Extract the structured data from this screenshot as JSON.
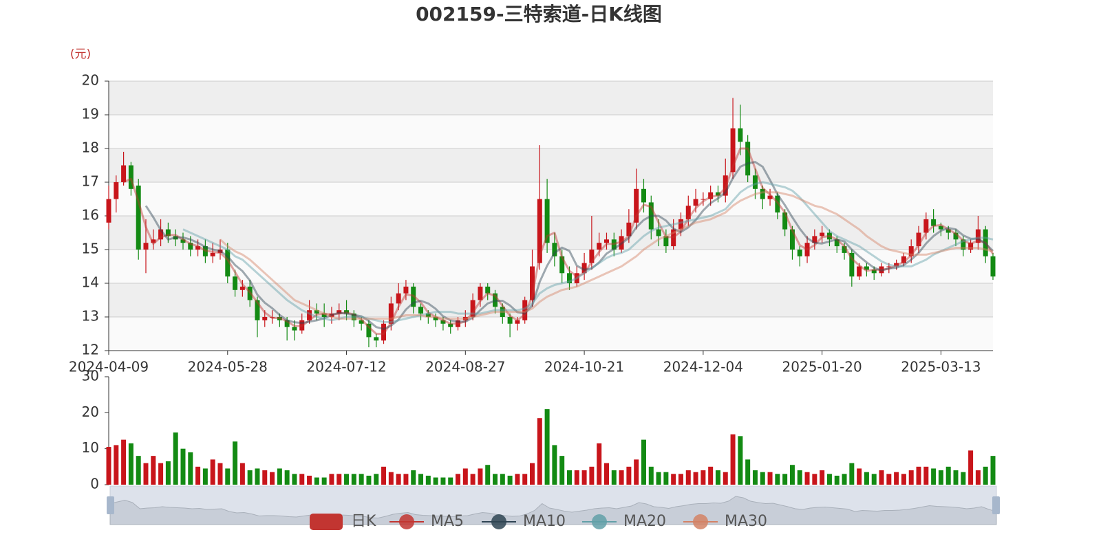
{
  "chart_data": {
    "type": "candlestick",
    "title": "002159-三特索道-日K线图",
    "y_unit": "(元)",
    "categories": [
      "2024-04-09",
      null,
      null,
      null,
      null,
      null,
      null,
      null,
      null,
      null,
      null,
      null,
      null,
      null,
      null,
      null,
      "2024-05-28",
      null,
      null,
      null,
      null,
      null,
      null,
      null,
      null,
      null,
      null,
      null,
      null,
      null,
      null,
      null,
      "2024-07-12",
      null,
      null,
      null,
      null,
      null,
      null,
      null,
      null,
      null,
      null,
      null,
      null,
      null,
      null,
      null,
      "2024-08-27",
      null,
      null,
      null,
      null,
      null,
      null,
      null,
      null,
      null,
      null,
      null,
      null,
      null,
      null,
      null,
      "2024-10-21",
      null,
      null,
      null,
      null,
      null,
      null,
      null,
      null,
      null,
      null,
      null,
      null,
      null,
      null,
      null,
      "2024-12-04",
      null,
      null,
      null,
      null,
      null,
      null,
      null,
      null,
      null,
      null,
      null,
      null,
      null,
      null,
      null,
      "2025-01-20",
      null,
      null,
      null,
      null,
      null,
      null,
      null,
      null,
      null,
      null,
      null,
      null,
      null,
      null,
      null,
      "2025-03-13",
      null,
      null,
      null,
      null,
      null,
      null,
      null
    ],
    "ylim": [
      12,
      20
    ],
    "yticks": [
      12,
      13,
      14,
      15,
      16,
      17,
      18,
      19,
      20
    ],
    "grid": true,
    "split_area_colors": [
      "#fafafa",
      "#eeeeee"
    ],
    "series": [
      {
        "name": "日K",
        "color": "#c23531",
        "up_color": "#c8151b",
        "down_color": "#138a13",
        "open": [
          15.8,
          16.5,
          17.0,
          17.5,
          16.9,
          15.0,
          15.2,
          15.3,
          15.6,
          15.4,
          15.3,
          15.2,
          15.0,
          15.1,
          14.8,
          14.9,
          15.0,
          14.2,
          13.8,
          13.9,
          13.5,
          12.9,
          13.0,
          13.0,
          12.9,
          12.7,
          12.6,
          12.9,
          13.2,
          13.1,
          13.0,
          13.1,
          13.2,
          13.1,
          12.9,
          12.8,
          12.4,
          12.3,
          12.8,
          13.4,
          13.7,
          13.9,
          13.3,
          13.1,
          13.0,
          12.9,
          12.8,
          12.7,
          12.9,
          13.0,
          13.5,
          13.9,
          13.7,
          13.3,
          13.0,
          12.8,
          12.9,
          13.5,
          14.6,
          16.5,
          15.2,
          14.8,
          14.3,
          14.0,
          14.3,
          14.6,
          15.0,
          15.2,
          15.3,
          15.0,
          15.4,
          15.8,
          16.8,
          16.4,
          15.6,
          15.4,
          15.1,
          15.6,
          15.9,
          16.3,
          16.5,
          16.5,
          16.7,
          16.6,
          17.3,
          18.6,
          18.2,
          17.2,
          16.8,
          16.5,
          16.6,
          16.1,
          15.6,
          15.0,
          14.8,
          15.2,
          15.4,
          15.5,
          15.3,
          15.1,
          14.9,
          14.2,
          14.5,
          14.4,
          14.3,
          14.5,
          14.5,
          14.6,
          14.8,
          15.1,
          15.5,
          15.9,
          15.7,
          15.6,
          15.5,
          15.3,
          15.0,
          15.2,
          15.6,
          14.8
        ],
        "close": [
          16.5,
          17.0,
          17.5,
          16.8,
          15.0,
          15.2,
          15.3,
          15.6,
          15.4,
          15.3,
          15.2,
          15.0,
          15.1,
          14.8,
          14.9,
          15.0,
          14.2,
          13.8,
          13.9,
          13.5,
          12.9,
          13.0,
          13.0,
          12.9,
          12.7,
          12.6,
          12.9,
          13.2,
          13.1,
          13.0,
          13.1,
          13.2,
          13.1,
          12.9,
          12.8,
          12.4,
          12.3,
          12.8,
          13.4,
          13.7,
          13.9,
          13.3,
          13.1,
          13.0,
          12.9,
          12.8,
          12.7,
          12.9,
          13.0,
          13.5,
          13.9,
          13.7,
          13.3,
          13.0,
          12.8,
          12.9,
          13.5,
          14.5,
          16.5,
          15.2,
          14.8,
          14.3,
          14.0,
          14.3,
          14.6,
          15.0,
          15.2,
          15.3,
          15.0,
          15.4,
          15.8,
          16.8,
          16.4,
          15.6,
          15.4,
          15.1,
          15.6,
          15.9,
          16.3,
          16.5,
          16.5,
          16.7,
          16.6,
          17.2,
          18.6,
          18.2,
          17.2,
          16.8,
          16.5,
          16.6,
          16.1,
          15.6,
          15.0,
          14.8,
          15.2,
          15.4,
          15.5,
          15.3,
          15.1,
          14.9,
          14.2,
          14.5,
          14.4,
          14.3,
          14.5,
          14.5,
          14.6,
          14.8,
          15.1,
          15.5,
          15.9,
          15.7,
          15.6,
          15.5,
          15.3,
          15.0,
          15.2,
          15.6,
          14.8,
          14.2
        ],
        "low": [
          15.6,
          16.1,
          16.9,
          16.6,
          14.7,
          14.3,
          15.0,
          15.1,
          15.2,
          15.1,
          15.0,
          14.8,
          14.8,
          14.6,
          14.6,
          14.7,
          14.0,
          13.6,
          13.6,
          13.3,
          12.4,
          12.7,
          12.8,
          12.7,
          12.3,
          12.3,
          12.5,
          12.8,
          12.9,
          12.7,
          12.8,
          12.9,
          12.9,
          12.7,
          12.6,
          12.1,
          12.1,
          12.2,
          12.6,
          13.2,
          13.5,
          13.1,
          12.9,
          12.8,
          12.7,
          12.6,
          12.5,
          12.6,
          12.7,
          12.9,
          13.3,
          13.5,
          13.1,
          12.8,
          12.4,
          12.6,
          12.8,
          13.3,
          14.4,
          14.9,
          14.5,
          14.0,
          13.8,
          13.9,
          14.1,
          14.4,
          14.8,
          15.0,
          14.8,
          14.9,
          15.2,
          15.6,
          16.1,
          15.3,
          15.1,
          14.9,
          15.0,
          15.4,
          15.7,
          16.1,
          16.3,
          16.3,
          16.4,
          16.4,
          17.1,
          17.8,
          17.0,
          16.5,
          16.2,
          16.3,
          15.9,
          15.4,
          14.7,
          14.5,
          14.6,
          15.0,
          15.2,
          15.1,
          14.9,
          14.7,
          13.9,
          14.1,
          14.2,
          14.1,
          14.2,
          14.3,
          14.4,
          14.5,
          14.6,
          14.9,
          15.3,
          15.5,
          15.4,
          15.3,
          15.1,
          14.8,
          14.9,
          15.0,
          14.6,
          14.1
        ],
        "high": [
          16.9,
          17.2,
          17.9,
          17.6,
          17.1,
          15.9,
          15.6,
          15.9,
          15.8,
          15.6,
          15.5,
          15.4,
          15.3,
          15.3,
          15.2,
          15.3,
          15.2,
          14.4,
          14.1,
          14.1,
          13.6,
          13.2,
          13.2,
          13.1,
          13.0,
          12.9,
          13.1,
          13.5,
          13.4,
          13.4,
          13.3,
          13.4,
          13.5,
          13.2,
          13.0,
          12.9,
          12.5,
          12.9,
          13.6,
          14.0,
          14.1,
          14.0,
          13.4,
          13.2,
          13.1,
          13.0,
          12.9,
          13.0,
          13.2,
          13.7,
          14.0,
          14.0,
          13.8,
          13.4,
          13.1,
          13.0,
          13.6,
          15.0,
          18.1,
          17.1,
          15.5,
          15.0,
          14.5,
          14.5,
          14.9,
          16.0,
          15.5,
          15.5,
          15.5,
          15.6,
          16.2,
          17.4,
          17.1,
          16.6,
          15.9,
          15.6,
          15.9,
          16.1,
          16.6,
          16.8,
          16.7,
          16.9,
          16.9,
          17.7,
          19.5,
          19.3,
          18.4,
          17.4,
          16.9,
          16.8,
          16.7,
          16.2,
          15.7,
          15.1,
          15.4,
          15.6,
          15.7,
          15.6,
          15.4,
          15.2,
          15.0,
          14.6,
          14.6,
          14.5,
          14.6,
          14.6,
          14.7,
          14.9,
          15.3,
          15.7,
          16.1,
          16.2,
          15.8,
          15.7,
          15.6,
          15.4,
          15.3,
          16.0,
          15.7,
          14.9
        ]
      },
      {
        "name": "MA5",
        "color": "#c23531",
        "values": [
          null,
          null,
          17.0,
          17.1,
          16.43,
          15.67,
          15.17,
          15.37,
          15.43,
          15.43,
          15.3,
          15.17,
          15.1,
          14.97,
          14.93,
          14.9,
          14.7,
          14.33,
          13.97,
          13.73,
          13.43,
          13.13,
          12.97,
          12.97,
          12.87,
          12.73,
          12.73,
          12.9,
          13.07,
          13.1,
          13.07,
          13.1,
          13.13,
          13.07,
          12.93,
          12.7,
          12.5,
          12.5,
          12.83,
          13.3,
          13.67,
          13.63,
          13.43,
          13.13,
          13.0,
          12.9,
          12.8,
          12.8,
          12.87,
          13.13,
          13.47,
          13.7,
          13.63,
          13.33,
          13.03,
          12.9,
          13.07,
          13.63,
          14.83,
          15.4,
          15.5,
          14.77,
          14.37,
          14.2,
          14.3,
          14.63,
          14.93,
          15.17,
          15.17,
          15.23,
          15.4,
          16.0,
          16.33,
          16.27,
          15.8,
          15.37,
          15.37,
          15.53,
          15.93,
          16.23,
          16.43,
          16.57,
          16.6,
          16.83,
          17.47,
          18.0,
          18.0,
          17.4,
          16.83,
          16.63,
          16.4,
          16.1,
          15.57,
          15.13,
          15.0,
          15.13,
          15.37,
          15.4,
          15.3,
          15.1,
          14.73,
          14.53,
          14.37,
          14.4,
          14.4,
          14.43,
          14.53,
          14.63,
          14.83,
          15.13,
          15.5,
          15.7,
          15.73,
          15.6,
          15.47,
          15.27,
          15.17,
          15.27,
          15.2,
          14.87
        ]
      },
      {
        "name": "MA10",
        "color": "#2f4554",
        "values": [
          null,
          null,
          null,
          null,
          null,
          16.3,
          15.96,
          15.58,
          15.3,
          15.36,
          15.36,
          15.3,
          15.2,
          15.08,
          15.0,
          14.96,
          14.8,
          14.54,
          14.36,
          14.08,
          13.66,
          13.42,
          13.26,
          13.06,
          12.9,
          12.84,
          12.82,
          12.86,
          12.9,
          12.96,
          13.06,
          13.12,
          13.1,
          13.06,
          13.02,
          12.88,
          12.7,
          12.64,
          12.74,
          12.92,
          13.22,
          13.42,
          13.48,
          13.4,
          13.24,
          13.02,
          12.9,
          12.86,
          12.86,
          12.98,
          13.2,
          13.4,
          13.48,
          13.48,
          13.34,
          13.14,
          13.1,
          13.34,
          14.04,
          14.52,
          14.9,
          15.06,
          14.96,
          14.52,
          14.4,
          14.44,
          14.62,
          14.88,
          15.02,
          15.18,
          15.34,
          15.66,
          15.88,
          16.0,
          16.0,
          15.86,
          15.62,
          15.52,
          15.66,
          15.88,
          16.16,
          16.38,
          16.52,
          16.7,
          17.12,
          17.46,
          17.56,
          17.6,
          17.46,
          17.06,
          16.64,
          16.32,
          15.96,
          15.62,
          15.34,
          15.2,
          15.18,
          15.24,
          15.3,
          15.24,
          15.0,
          14.8,
          14.62,
          14.46,
          14.38,
          14.44,
          14.46,
          14.54,
          14.7,
          14.9,
          15.18,
          15.4,
          15.56,
          15.64,
          15.6,
          15.42,
          15.32,
          15.32,
          15.18,
          14.96
        ]
      },
      {
        "name": "MA20",
        "color": "#61a0a8",
        "values": [
          null,
          null,
          null,
          null,
          null,
          null,
          null,
          null,
          null,
          null,
          15.6,
          15.5,
          15.4,
          15.3,
          15.2,
          15.1,
          15.0,
          14.8,
          14.7,
          14.5,
          14.3,
          14.1,
          13.9,
          13.7,
          13.5,
          13.35,
          13.2,
          13.1,
          13.0,
          12.95,
          12.9,
          12.95,
          13.0,
          13.0,
          13.0,
          12.95,
          12.9,
          12.85,
          12.85,
          12.9,
          12.95,
          13.0,
          13.05,
          13.1,
          13.15,
          13.15,
          13.15,
          13.1,
          13.1,
          13.1,
          13.1,
          13.15,
          13.2,
          13.2,
          13.2,
          13.2,
          13.25,
          13.4,
          13.7,
          13.85,
          13.95,
          14.0,
          14.05,
          14.15,
          14.3,
          14.45,
          14.6,
          14.75,
          14.85,
          14.9,
          15.0,
          15.2,
          15.4,
          15.55,
          15.65,
          15.7,
          15.75,
          15.8,
          15.85,
          15.9,
          15.95,
          16.0,
          16.1,
          16.2,
          16.45,
          16.7,
          16.85,
          16.95,
          17.0,
          16.95,
          16.9,
          16.85,
          16.75,
          16.55,
          16.3,
          16.05,
          15.8,
          15.55,
          15.4,
          15.3,
          15.2,
          15.1,
          14.95,
          14.8,
          14.65,
          14.55,
          14.5,
          14.5,
          14.5,
          14.6,
          14.7,
          14.85,
          14.95,
          15.05,
          15.15,
          15.25,
          15.3,
          15.35,
          15.35,
          15.3
        ]
      },
      {
        "name": "MA30",
        "color": "#d48265",
        "values": [
          null,
          null,
          null,
          null,
          null,
          null,
          null,
          null,
          null,
          null,
          null,
          null,
          null,
          null,
          null,
          15.3,
          15.1,
          14.95,
          14.85,
          14.7,
          14.5,
          14.3,
          14.1,
          13.9,
          13.7,
          13.5,
          13.4,
          13.3,
          13.2,
          13.1,
          13.0,
          12.95,
          12.95,
          12.95,
          12.95,
          12.95,
          12.95,
          12.95,
          12.95,
          13.0,
          13.05,
          13.05,
          13.05,
          13.0,
          13.0,
          12.95,
          12.95,
          12.95,
          12.95,
          13.0,
          13.05,
          13.1,
          13.15,
          13.15,
          13.15,
          13.15,
          13.15,
          13.25,
          13.45,
          13.6,
          13.7,
          13.8,
          13.85,
          13.9,
          14.0,
          14.1,
          14.2,
          14.3,
          14.4,
          14.5,
          14.65,
          14.8,
          15.0,
          15.15,
          15.3,
          15.4,
          15.5,
          15.6,
          15.7,
          15.8,
          15.85,
          15.9,
          16.0,
          16.1,
          16.3,
          16.45,
          16.55,
          16.65,
          16.7,
          16.7,
          16.7,
          16.65,
          16.6,
          16.5,
          16.4,
          16.3,
          16.25,
          16.15,
          16.05,
          15.9,
          15.75,
          15.6,
          15.4,
          15.25,
          15.1,
          15.0,
          14.95,
          14.9,
          14.85,
          14.85,
          14.85,
          14.9,
          14.95,
          15.0,
          15.05,
          15.05,
          15.05,
          15.05,
          15.0,
          14.95
        ]
      }
    ],
    "volume": {
      "values": [
        10.5,
        11,
        12.5,
        11.5,
        8,
        6,
        8,
        6,
        6.5,
        14.5,
        10,
        9,
        5,
        4.5,
        7,
        6,
        4.5,
        12,
        6,
        4,
        4.5,
        4,
        3.5,
        4.5,
        4,
        3,
        3,
        2.5,
        2,
        2,
        3,
        3,
        3,
        3,
        3,
        2.5,
        3,
        5,
        3.5,
        3,
        3,
        4,
        3,
        2.5,
        2,
        2,
        2,
        3,
        4.5,
        3,
        4.5,
        5.5,
        3,
        3,
        2.5,
        3,
        3,
        6,
        18.5,
        21,
        11,
        8,
        4,
        4,
        4,
        5,
        11.5,
        6,
        4,
        4,
        5,
        7,
        12.5,
        5,
        3.5,
        3.5,
        3,
        3,
        4,
        3.5,
        4,
        5,
        4,
        3.5,
        14,
        13.5,
        7,
        4,
        3.5,
        3.5,
        3,
        3,
        5.5,
        4,
        3.5,
        3,
        4,
        3,
        2.5,
        3,
        6,
        4.5,
        3.5,
        3,
        4,
        3,
        3.5,
        3,
        4,
        5,
        5,
        4.5,
        4,
        5,
        4,
        3.5,
        9.5,
        4,
        5,
        8
      ],
      "ylim": [
        0,
        30
      ],
      "yticks": [
        0,
        10,
        20,
        30
      ]
    }
  }
}
